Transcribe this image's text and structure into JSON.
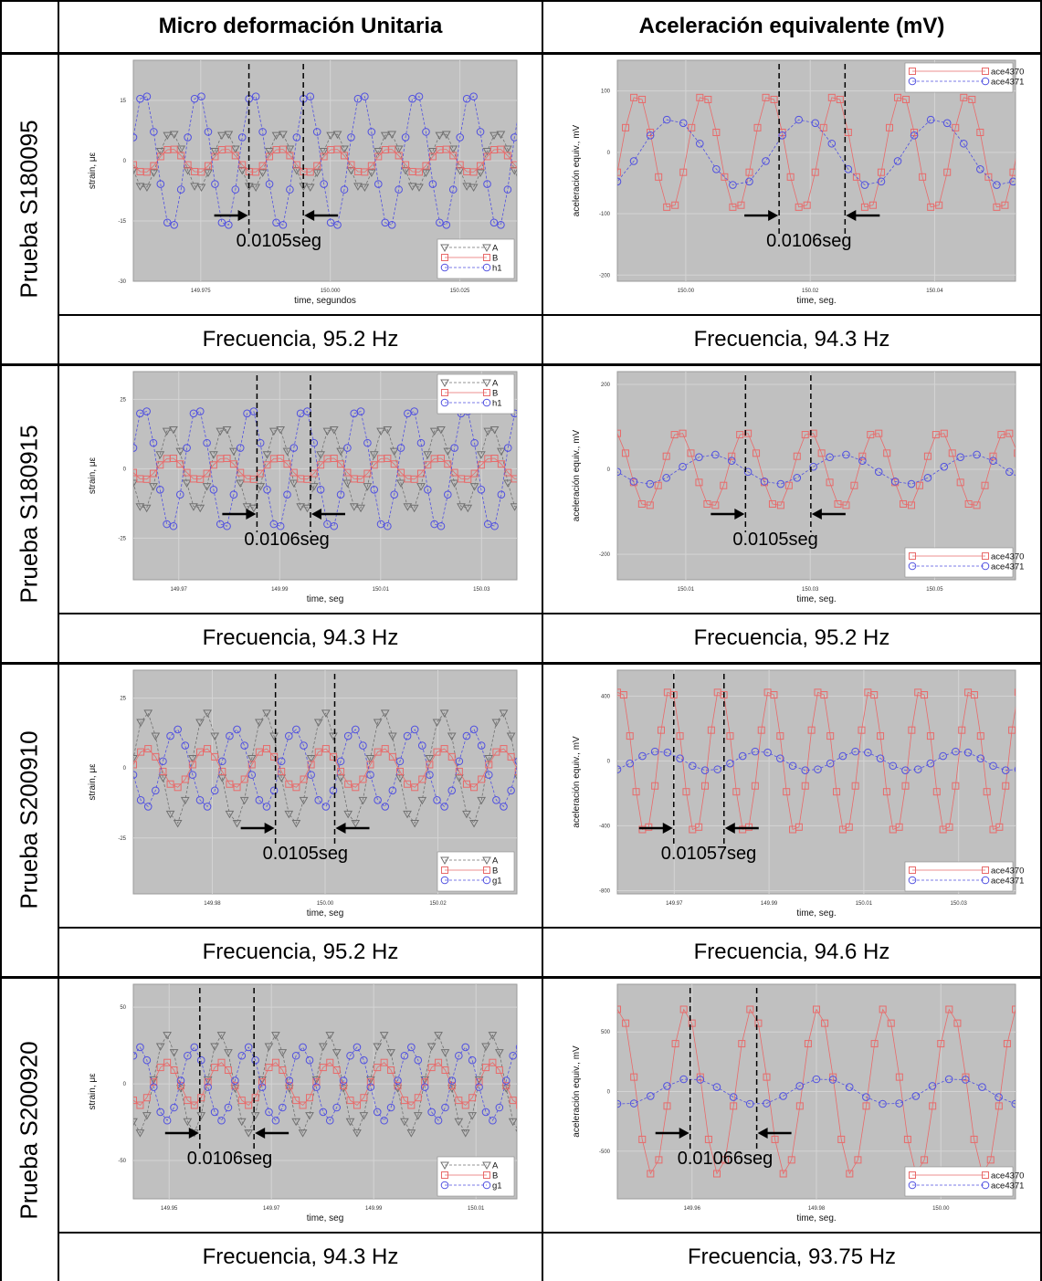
{
  "headers": {
    "col1": "Micro deformación Unitaria",
    "col2": "Aceleración equivalente (mV)"
  },
  "rows": [
    {
      "label": "Prueba S180095",
      "left_freq": "Frecuencia, 95.2 Hz",
      "right_freq": "Frecuencia, 94.3 Hz"
    },
    {
      "label": "Prueba S180915",
      "left_freq": "Frecuencia, 94.3 Hz",
      "right_freq": "Frecuencia, 95.2 Hz"
    },
    {
      "label": "Prueba S200910",
      "left_freq": "Frecuencia, 95.2 Hz",
      "right_freq": "Frecuencia, 94.6 Hz"
    },
    {
      "label": "Prueba S200920",
      "left_freq": "Frecuencia, 94.3 Hz",
      "right_freq": "Frecuencia, 93.75 Hz"
    }
  ],
  "colors": {
    "plot_bg": "#c0c0c0",
    "grid": "#d4d4d4",
    "series_gray": "#707070",
    "series_red": "#e86a6a",
    "series_blue": "#5050e0"
  },
  "chart_data": [
    {
      "type": "line",
      "test": "Prueba S180095",
      "ylabel": "strain, με",
      "xlabel": "time, segundos",
      "xlim": [
        149.962,
        150.036
      ],
      "ylim": [
        -30,
        25
      ],
      "xticks": [
        149.975,
        150.0,
        150.025
      ],
      "xtick_labels": [
        "149.975",
        "150.000",
        "150.025"
      ],
      "yticks": [
        -30,
        -15,
        0,
        15
      ],
      "ytick_labels": [
        "-30",
        "-15",
        "0",
        "15"
      ],
      "legend_position": "bottom-right",
      "series": [
        {
          "name": "A",
          "marker": "triangle",
          "amplitude": 7,
          "frequency_hz": 95.2,
          "phase_deg": 200
        },
        {
          "name": "B",
          "marker": "square",
          "amplitude": 3,
          "frequency_hz": 95.2,
          "phase_deg": 200
        },
        {
          "name": "h1",
          "marker": "circle",
          "amplitude": 17,
          "frequency_hz": 95.2,
          "phase_deg": 20
        }
      ],
      "markers_x": [
        149.9843,
        149.9948
      ],
      "annotation": "0.0105seg"
    },
    {
      "type": "line",
      "test": "Prueba S180095",
      "ylabel": "aceleración equiv., mV",
      "xlabel": "time, seg.",
      "xlim": [
        149.989,
        150.053
      ],
      "ylim": [
        -210,
        150
      ],
      "xticks": [
        150.0,
        150.02,
        150.04
      ],
      "xtick_labels": [
        "150.00",
        "150.02",
        "150.04"
      ],
      "yticks": [
        -200,
        -100,
        0,
        100
      ],
      "ytick_labels": [
        "-200",
        "-100",
        "0",
        "100"
      ],
      "legend_position": "top-right",
      "series": [
        {
          "name": "ace4370",
          "marker": "square",
          "amplitude": 95,
          "frequency_hz": 94.3,
          "phase_deg": 340
        },
        {
          "name": "ace4371",
          "marker": "circle",
          "amplitude": 55,
          "frequency_hz": 47.15,
          "phase_deg": 300
        }
      ],
      "markers_x": [
        150.015,
        150.0256
      ],
      "annotation": "0.0106seg"
    },
    {
      "type": "line",
      "test": "Prueba S180915",
      "ylabel": "strain, με",
      "xlabel": "time, seg",
      "xlim": [
        149.961,
        150.037
      ],
      "ylim": [
        -40,
        35
      ],
      "xticks": [
        149.97,
        149.99,
        150.01,
        150.03
      ],
      "xtick_labels": [
        "149.97",
        "149.99",
        "150.01",
        "150.03"
      ],
      "yticks": [
        -25,
        0,
        25
      ],
      "ytick_labels": [
        "-25",
        "0",
        "25"
      ],
      "legend_position": "top-right",
      "series": [
        {
          "name": "A",
          "marker": "triangle",
          "amplitude": 15,
          "frequency_hz": 94.3,
          "phase_deg": 200
        },
        {
          "name": "B",
          "marker": "square",
          "amplitude": 4,
          "frequency_hz": 94.3,
          "phase_deg": 200
        },
        {
          "name": "h1",
          "marker": "circle",
          "amplitude": 22,
          "frequency_hz": 94.3,
          "phase_deg": 20
        }
      ],
      "markers_x": [
        149.9855,
        149.9961
      ],
      "annotation": "0.0106seg"
    },
    {
      "type": "line",
      "test": "Prueba S180915",
      "ylabel": "aceleración equiv., mV",
      "xlabel": "time, seg.",
      "xlim": [
        149.999,
        150.063
      ],
      "ylim": [
        -260,
        230
      ],
      "xticks": [
        150.01,
        150.03,
        150.05
      ],
      "xtick_labels": [
        "150.01",
        "150.03",
        "150.05"
      ],
      "yticks": [
        -200,
        0,
        200
      ],
      "ytick_labels": [
        "-200",
        "0",
        "200"
      ],
      "legend_position": "bottom-right",
      "series": [
        {
          "name": "ace4370",
          "marker": "square",
          "amplitude": 90,
          "frequency_hz": 95.2,
          "phase_deg": 110
        },
        {
          "name": "ace4371",
          "marker": "circle",
          "amplitude": 35,
          "frequency_hz": 47.6,
          "phase_deg": 190
        }
      ],
      "markers_x": [
        150.0196,
        150.0301
      ],
      "annotation": "0.0105seg"
    },
    {
      "type": "line",
      "test": "Prueba S200910",
      "ylabel": "strain, με",
      "xlabel": "time, seg",
      "xlim": [
        149.966,
        150.034
      ],
      "ylim": [
        -45,
        35
      ],
      "xticks": [
        149.98,
        150.0,
        150.02
      ],
      "xtick_labels": [
        "149.98",
        "150.00",
        "150.02"
      ],
      "yticks": [
        -25,
        0,
        25
      ],
      "ytick_labels": [
        "-25",
        "0",
        "25"
      ],
      "legend_position": "bottom-right",
      "series": [
        {
          "name": "A",
          "marker": "triangle",
          "amplitude": 20,
          "frequency_hz": 95.2,
          "phase_deg": 10
        },
        {
          "name": "B",
          "marker": "square",
          "amplitude": 7,
          "frequency_hz": 95.2,
          "phase_deg": 10
        },
        {
          "name": "g1",
          "marker": "circle",
          "amplitude": 14,
          "frequency_hz": 95.2,
          "phase_deg": 190
        }
      ],
      "markers_x": [
        149.9912,
        150.0017
      ],
      "annotation": "0.0105seg"
    },
    {
      "type": "line",
      "test": "Prueba S200910",
      "ylabel": "aceleración equiv., mV",
      "xlabel": "time, seg.",
      "xlim": [
        149.958,
        150.042
      ],
      "ylim": [
        -820,
        560
      ],
      "xticks": [
        149.97,
        149.99,
        150.01,
        150.03
      ],
      "xtick_labels": [
        "149.97",
        "149.99",
        "150.01",
        "150.03"
      ],
      "yticks": [
        -800,
        -400,
        0,
        400
      ],
      "ytick_labels": [
        "-800",
        "-400",
        "0",
        "400"
      ],
      "legend_position": "bottom-right",
      "series": [
        {
          "name": "ace4370",
          "marker": "square",
          "amplitude": 450,
          "frequency_hz": 94.6,
          "phase_deg": 70
        },
        {
          "name": "ace4371",
          "marker": "circle",
          "amplitude": 60,
          "frequency_hz": 47.3,
          "phase_deg": 300
        }
      ],
      "markers_x": [
        149.9699,
        149.9805
      ],
      "annotation": "0.01057seg"
    },
    {
      "type": "line",
      "test": "Prueba S200920",
      "ylabel": "strain, με",
      "xlabel": "time, seg",
      "xlim": [
        149.943,
        150.018
      ],
      "ylim": [
        -75,
        65
      ],
      "xticks": [
        149.95,
        149.97,
        149.99,
        150.01
      ],
      "xtick_labels": [
        "149.95",
        "149.97",
        "149.99",
        "150.01"
      ],
      "yticks": [
        -50,
        0,
        50
      ],
      "ytick_labels": [
        "-50",
        "0",
        "50"
      ],
      "legend_position": "bottom-right",
      "series": [
        {
          "name": "A",
          "marker": "triangle",
          "amplitude": 32,
          "frequency_hz": 94.3,
          "phase_deg": 230
        },
        {
          "name": "B",
          "marker": "square",
          "amplitude": 14,
          "frequency_hz": 94.3,
          "phase_deg": 230
        },
        {
          "name": "g1",
          "marker": "circle",
          "amplitude": 24,
          "frequency_hz": 94.3,
          "phase_deg": 50
        }
      ],
      "markers_x": [
        149.956,
        149.9666
      ],
      "annotation": "0.0106seg"
    },
    {
      "type": "line",
      "test": "Prueba S200920",
      "ylabel": "aceleración equiv., mV",
      "xlabel": "time, seg.",
      "xlim": [
        149.948,
        150.012
      ],
      "ylim": [
        -900,
        900
      ],
      "xticks": [
        149.96,
        149.98,
        150.0
      ],
      "xtick_labels": [
        "149.96",
        "149.98",
        "150.00"
      ],
      "yticks": [
        -500,
        0,
        500
      ],
      "ytick_labels": [
        "-500",
        "0",
        "500"
      ],
      "legend_position": "bottom-right",
      "series": [
        {
          "name": "ace4370",
          "marker": "square",
          "amplitude": 700,
          "frequency_hz": 93.75,
          "phase_deg": 80
        },
        {
          "name": "ace4371",
          "marker": "circle",
          "amplitude": 110,
          "frequency_hz": 46.9,
          "phase_deg": 250
        }
      ],
      "markers_x": [
        149.9597,
        149.9704
      ],
      "annotation": "0.01066seg"
    }
  ]
}
